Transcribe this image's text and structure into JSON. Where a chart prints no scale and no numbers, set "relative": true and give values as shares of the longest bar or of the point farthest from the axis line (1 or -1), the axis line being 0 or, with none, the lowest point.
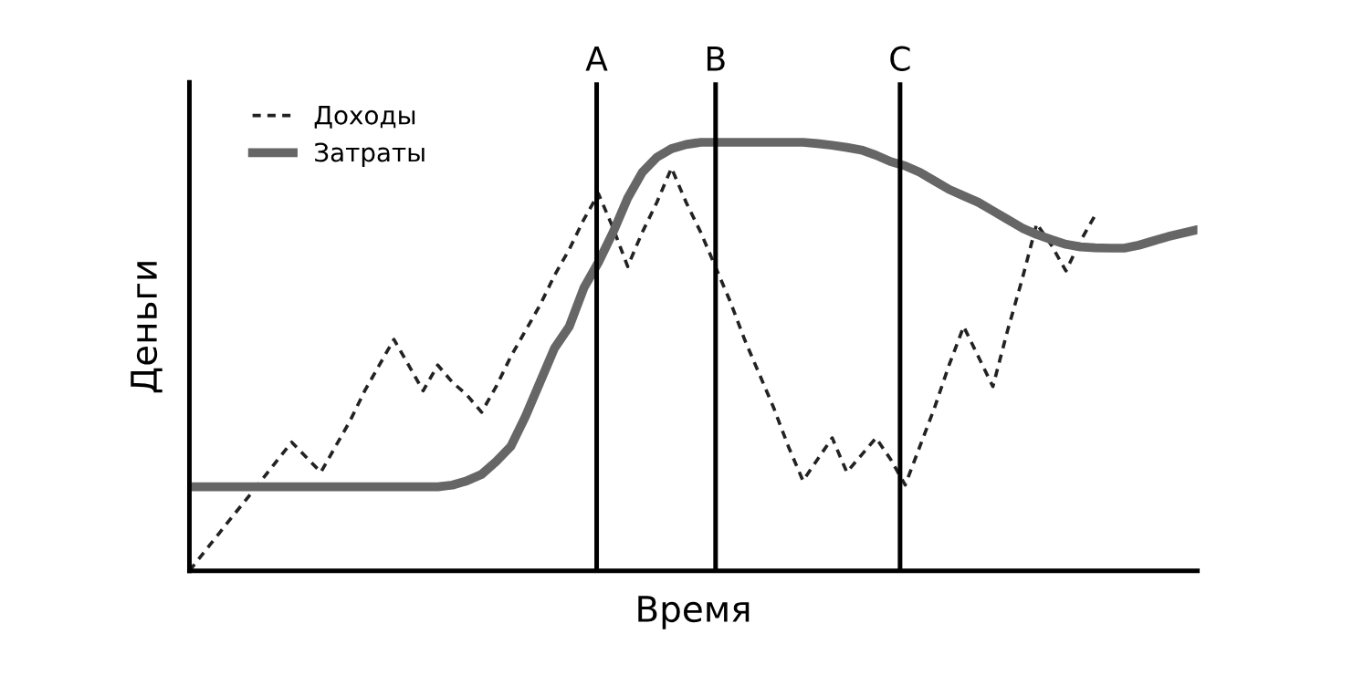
{
  "chart_data": {
    "type": "line",
    "relative": true,
    "xlabel": "Время",
    "ylabel": "Деньги",
    "legend": "top left",
    "categories": [
      null,
      null,
      null,
      null,
      null,
      null,
      null,
      null,
      null,
      null,
      null,
      null,
      null,
      null,
      null,
      null,
      null,
      null,
      null,
      null,
      null,
      null,
      null,
      null,
      null,
      null,
      null,
      null,
      null,
      null,
      null,
      null,
      null,
      null,
      null,
      null,
      null,
      null,
      null,
      null,
      null,
      null,
      null,
      null,
      null,
      null,
      null,
      null,
      null,
      null,
      null,
      null,
      null,
      null,
      null,
      null,
      null,
      null,
      null,
      null,
      null,
      null,
      null,
      null,
      null,
      null,
      null,
      null,
      null,
      null
    ],
    "series": [
      {
        "name": "Доходы",
        "color": "#222222",
        "line_style": "dashed",
        "values": [
          0.0,
          0.043,
          0.086,
          0.129,
          0.171,
          0.214,
          0.257,
          0.3,
          0.265,
          0.23,
          0.29,
          0.35,
          0.42,
          0.48,
          0.54,
          0.48,
          0.42,
          0.48,
          0.44,
          0.41,
          0.37,
          0.43,
          0.5,
          0.56,
          0.62,
          0.69,
          0.75,
          0.82,
          0.88,
          0.8,
          0.71,
          0.79,
          0.86,
          0.94,
          0.86,
          0.79,
          0.71,
          0.63,
          0.54,
          0.46,
          0.38,
          0.29,
          0.21,
          0.26,
          0.31,
          0.23,
          0.27,
          0.31,
          0.26,
          0.2,
          0.29,
          0.38,
          0.48,
          0.57,
          0.5,
          0.43,
          0.56,
          0.68,
          0.81,
          0.76,
          0.7,
          0.77,
          0.83,
          null,
          null,
          null,
          null,
          null,
          null,
          null
        ]
      },
      {
        "name": "Затраты",
        "color": "#666666",
        "line_style": "solid",
        "values": [
          0.196,
          0.196,
          0.196,
          0.196,
          0.196,
          0.196,
          0.196,
          0.196,
          0.196,
          0.196,
          0.196,
          0.196,
          0.196,
          0.196,
          0.196,
          0.196,
          0.196,
          0.196,
          0.2,
          0.21,
          0.225,
          0.255,
          0.29,
          0.36,
          0.44,
          0.52,
          0.57,
          0.66,
          0.72,
          0.79,
          0.87,
          0.93,
          0.965,
          0.985,
          0.995,
          1,
          1,
          1,
          1,
          1,
          1,
          1,
          1,
          0.997,
          0.993,
          0.988,
          0.982,
          0.97,
          0.955,
          0.945,
          0.93,
          0.91,
          0.89,
          0.875,
          0.86,
          0.84,
          0.82,
          0.8,
          0.785,
          0.773,
          0.762,
          0.756,
          0.754,
          0.753,
          0.753,
          0.76,
          0.77,
          0.78,
          0.788,
          0.796
        ]
      }
    ],
    "annotations": [
      "A",
      "B",
      "C"
    ]
  }
}
